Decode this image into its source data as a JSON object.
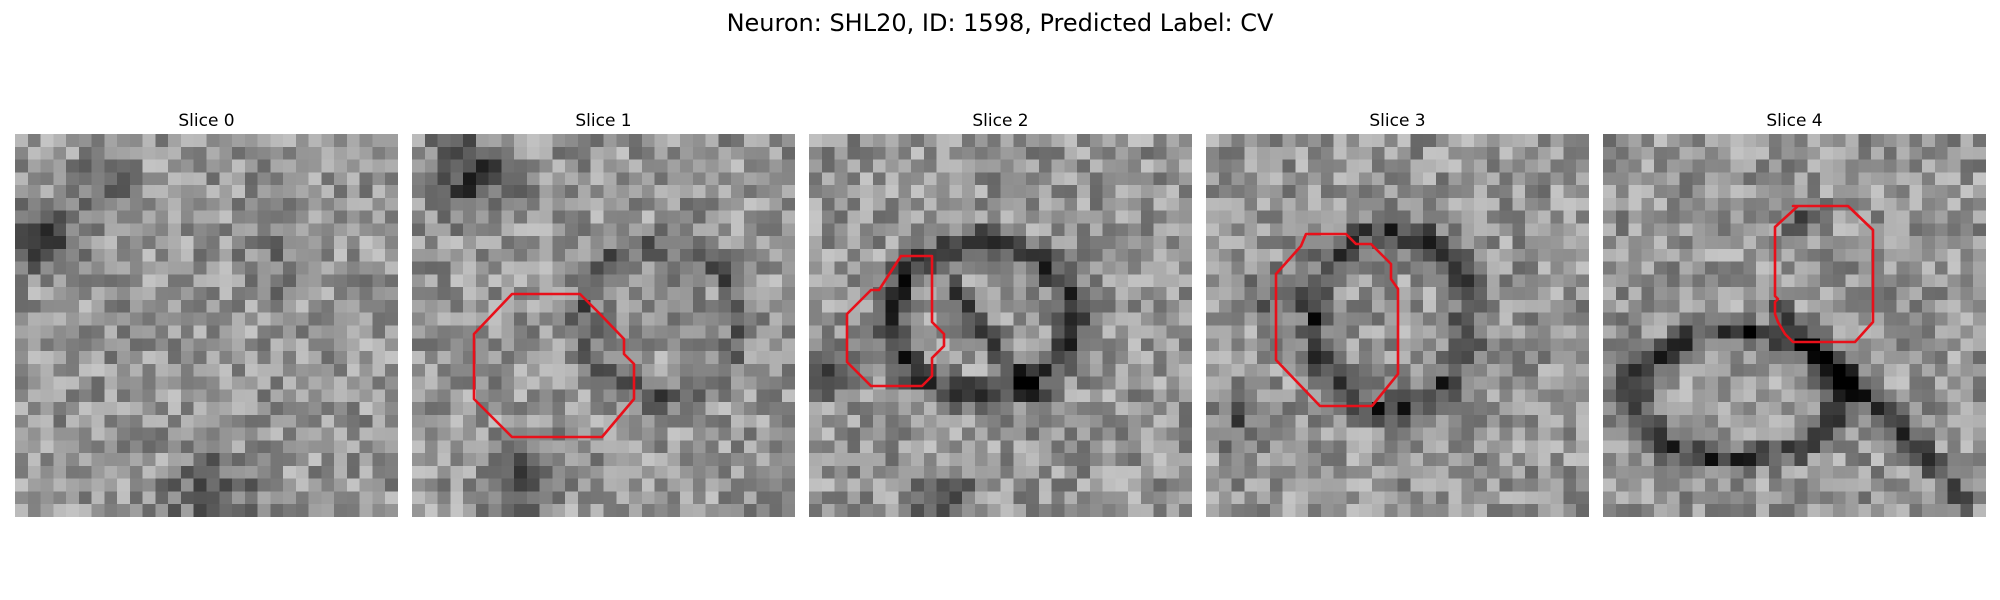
{
  "figure": {
    "title": "Neuron: SHL20, ID: 1598, Predicted Label: CV"
  },
  "panels": [
    {
      "title": "Slice 0",
      "has_outline": false
    },
    {
      "title": "Slice 1",
      "has_outline": true
    },
    {
      "title": "Slice 2",
      "has_outline": true
    },
    {
      "title": "Slice 3",
      "has_outline": true
    },
    {
      "title": "Slice 4",
      "has_outline": true
    }
  ],
  "colors": {
    "outline": "#e8101a",
    "background": "#ffffff",
    "colormap": "gray"
  }
}
